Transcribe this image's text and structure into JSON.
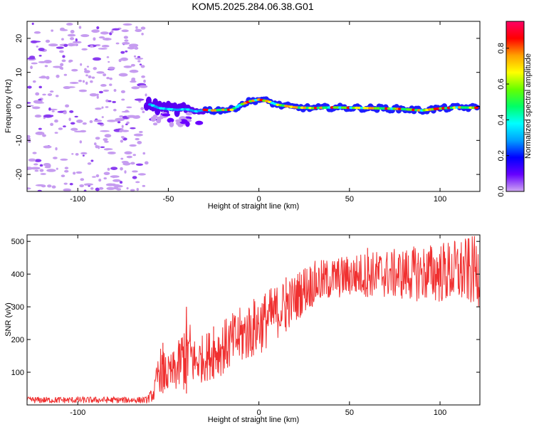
{
  "chart_data": [
    {
      "type": "heatmap",
      "title": "KOM5.2025.284.06.38.G01",
      "xlabel": "Height of straight line (km)",
      "ylabel": "Frequency (Hz)",
      "xlim": [
        -128,
        122
      ],
      "ylim": [
        -25,
        25
      ],
      "xticks": [
        -100,
        -50,
        0,
        50,
        100
      ],
      "yticks": [
        -20,
        -10,
        0,
        10,
        20
      ],
      "colorbar": {
        "label": "Normalized spectral amplitude",
        "range": [
          0,
          0.95
        ],
        "ticks": [
          0.0,
          0.2,
          0.4,
          0.6,
          0.8
        ],
        "colormap": [
          "#cfa8f2",
          "#6600ff",
          "#0000ff",
          "#00a0ff",
          "#00ffff",
          "#00ff66",
          "#66ff00",
          "#ffff00",
          "#ffa000",
          "#ff0000",
          "#ff0066"
        ]
      },
      "ridge_freq_hz": {
        "height_km": [
          -62,
          -55,
          -50,
          -45,
          -40,
          -35,
          -30,
          -25,
          -20,
          -15,
          -10,
          -5,
          0,
          5,
          10,
          20,
          30,
          40,
          50,
          60,
          70,
          80,
          90,
          100,
          110,
          120
        ],
        "frequency": [
          1.0,
          -0.5,
          -0.8,
          -1.0,
          -0.8,
          -1.5,
          -1.0,
          -1.2,
          -1.0,
          -1.0,
          0.5,
          1.5,
          2.0,
          1.5,
          0.5,
          -0.3,
          -0.5,
          -0.3,
          -0.4,
          -0.5,
          -0.6,
          -0.8,
          -1.2,
          -0.6,
          -0.3,
          -0.4
        ]
      },
      "noise_region_km": [
        -128,
        -62
      ]
    },
    {
      "type": "line",
      "xlabel": "Height of straight line (km)",
      "ylabel": "SNR (v/v)",
      "xlim": [
        -128,
        122
      ],
      "ylim": [
        0,
        520
      ],
      "xticks": [
        -100,
        0,
        50,
        100
      ],
      "xtick_labels": [
        "-100",
        "0",
        "50",
        "100"
      ],
      "yticks": [
        100,
        200,
        300,
        400,
        500
      ],
      "color": "#f03030",
      "envelope": {
        "height_km": [
          -128,
          -100,
          -80,
          -62,
          -58,
          -55,
          -50,
          -45,
          -40,
          -35,
          -30,
          -20,
          -10,
          0,
          10,
          20,
          25,
          30,
          40,
          50,
          60,
          80,
          100,
          122
        ],
        "low": [
          5,
          5,
          5,
          5,
          10,
          40,
          30,
          40,
          35,
          60,
          70,
          90,
          120,
          150,
          200,
          250,
          280,
          300,
          320,
          330,
          330,
          320,
          310,
          300
        ],
        "high": [
          25,
          25,
          25,
          25,
          60,
          180,
          150,
          180,
          300,
          200,
          220,
          260,
          300,
          340,
          370,
          400,
          430,
          440,
          450,
          460,
          470,
          480,
          500,
          520
        ]
      },
      "spikes": [
        {
          "height_km": -53,
          "value": 190
        },
        {
          "height_km": -40,
          "value": 300
        },
        {
          "height_km": -25,
          "value": 240
        },
        {
          "height_km": 15,
          "value": 390
        },
        {
          "height_km": 60,
          "value": 480
        }
      ]
    }
  ]
}
